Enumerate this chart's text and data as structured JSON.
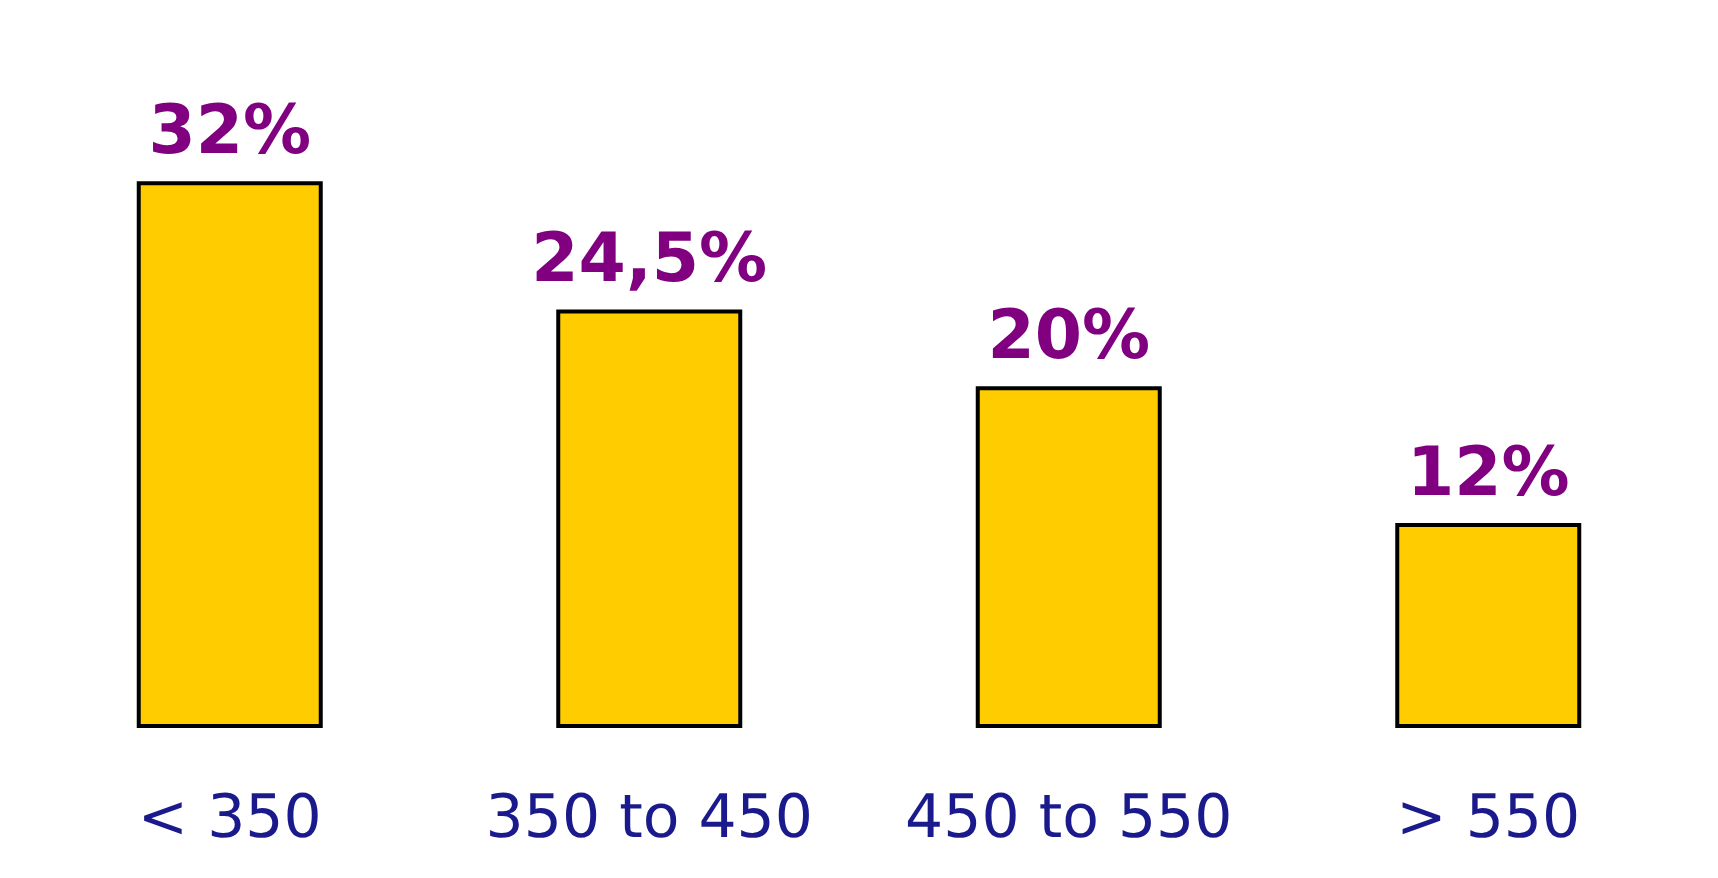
{
  "chart_data": {
    "type": "bar",
    "categories": [
      "< 350",
      "350 to 450",
      "450 to 550",
      "> 550"
    ],
    "values": [
      32,
      24.5,
      20,
      12
    ],
    "value_labels": [
      "32%",
      "24,5%",
      "20%",
      "12%"
    ],
    "color": "#ffcc00"
  }
}
